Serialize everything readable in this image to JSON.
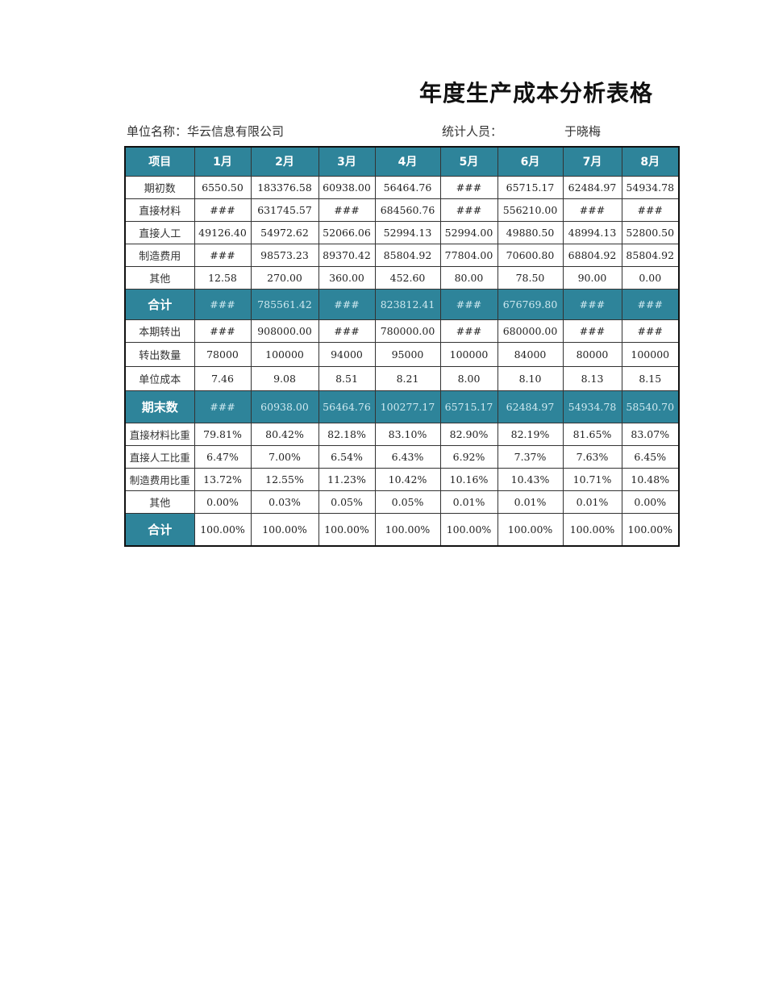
{
  "title": "年度生产成本分析表格",
  "info": {
    "unit_label": "单位名称：华云信息有限公司",
    "stat_label": "统计人员：",
    "stat_person": "于晓梅"
  },
  "colors": {
    "accent": "#2e849a"
  },
  "table": {
    "headers": [
      "项目",
      "1月",
      "2月",
      "3月",
      "4月",
      "5月",
      "6月",
      "7月",
      "8月"
    ],
    "rows": [
      {
        "label": "期初数",
        "values": [
          "6550.50",
          "183376.58",
          "60938.00",
          "56464.76",
          "###",
          "65715.17",
          "62484.97",
          "54934.78"
        ]
      },
      {
        "label": "直接材料",
        "values": [
          "###",
          "631745.57",
          "###",
          "684560.76",
          "###",
          "556210.00",
          "###",
          "###"
        ]
      },
      {
        "label": "直接人工",
        "values": [
          "49126.40",
          "54972.62",
          "52066.06",
          "52994.13",
          "52994.00",
          "49880.50",
          "48994.13",
          "52800.50"
        ]
      },
      {
        "label": "制造费用",
        "values": [
          "###",
          "98573.23",
          "89370.42",
          "85804.92",
          "77804.00",
          "70600.80",
          "68804.92",
          "85804.92"
        ]
      },
      {
        "label": "其他",
        "values": [
          "12.58",
          "270.00",
          "360.00",
          "452.60",
          "80.00",
          "78.50",
          "90.00",
          "0.00"
        ]
      },
      {
        "label": "合计",
        "values": [
          "###",
          "785561.42",
          "###",
          "823812.41",
          "###",
          "676769.80",
          "###",
          "###"
        ]
      },
      {
        "label": "本期转出",
        "values": [
          "###",
          "908000.00",
          "###",
          "780000.00",
          "###",
          "680000.00",
          "###",
          "###"
        ]
      },
      {
        "label": "转出数量",
        "values": [
          "78000",
          "100000",
          "94000",
          "95000",
          "100000",
          "84000",
          "80000",
          "100000"
        ]
      },
      {
        "label": "单位成本",
        "values": [
          "7.46",
          "9.08",
          "8.51",
          "8.21",
          "8.00",
          "8.10",
          "8.13",
          "8.15"
        ]
      },
      {
        "label": "期末数",
        "values": [
          "###",
          "60938.00",
          "56464.76",
          "100277.17",
          "65715.17",
          "62484.97",
          "54934.78",
          "58540.70"
        ]
      },
      {
        "label": "直接材料比重",
        "values": [
          "79.81%",
          "80.42%",
          "82.18%",
          "83.10%",
          "82.90%",
          "82.19%",
          "81.65%",
          "83.07%"
        ]
      },
      {
        "label": "直接人工比重",
        "values": [
          "6.47%",
          "7.00%",
          "6.54%",
          "6.43%",
          "6.92%",
          "7.37%",
          "7.63%",
          "6.45%"
        ]
      },
      {
        "label": "制造费用比重",
        "values": [
          "13.72%",
          "12.55%",
          "11.23%",
          "10.42%",
          "10.16%",
          "10.43%",
          "10.71%",
          "10.48%"
        ]
      },
      {
        "label": "其他",
        "values": [
          "0.00%",
          "0.03%",
          "0.05%",
          "0.05%",
          "0.01%",
          "0.01%",
          "0.01%",
          "0.00%"
        ]
      },
      {
        "label": "合计",
        "values": [
          "100.00%",
          "100.00%",
          "100.00%",
          "100.00%",
          "100.00%",
          "100.00%",
          "100.00%",
          "100.00%"
        ]
      }
    ]
  }
}
